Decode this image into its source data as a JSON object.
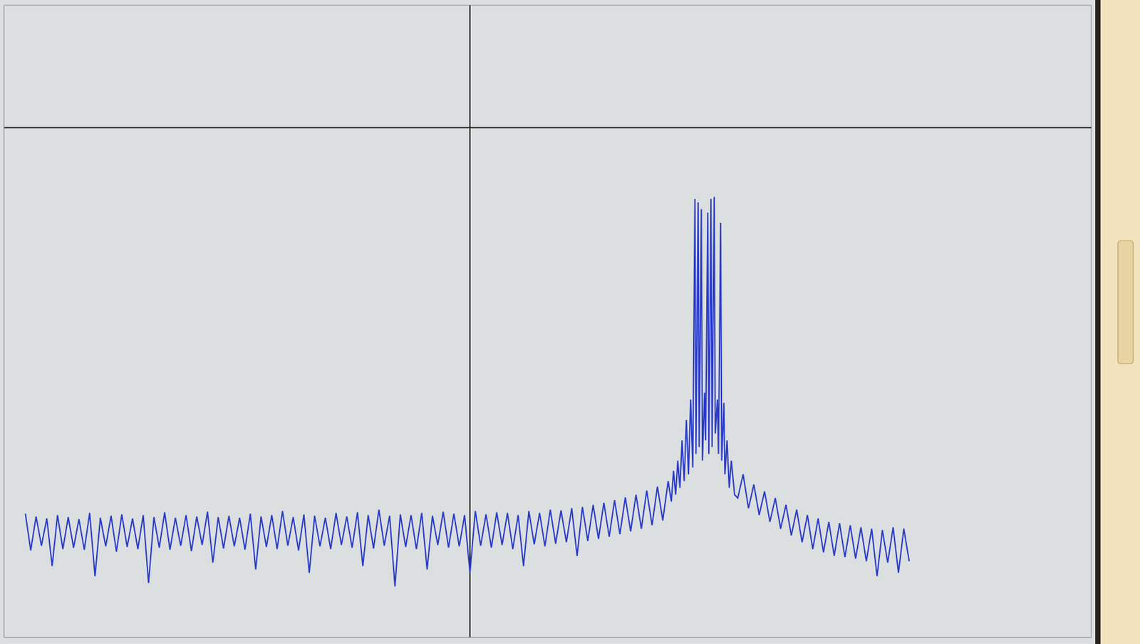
{
  "chart_data": {
    "type": "line",
    "color": "#2a3cc8",
    "grid": true,
    "tick_labels": false,
    "xlim": [
      -0.35,
      9.8
    ],
    "ylim": [
      -0.5,
      8.8
    ],
    "xticks": [
      0,
      1,
      2,
      3,
      4,
      5,
      6,
      7,
      8,
      9
    ],
    "yticks": [
      0,
      1,
      2,
      3,
      4,
      5,
      6,
      7,
      8
    ],
    "reference_lines": {
      "x": 4,
      "y": 7
    },
    "x": [
      -0.15,
      -0.1,
      -0.05,
      0,
      0.05,
      0.1,
      0.15,
      0.2,
      0.25,
      0.3,
      0.35,
      0.4,
      0.45,
      0.5,
      0.55,
      0.6,
      0.65,
      0.7,
      0.75,
      0.8,
      0.85,
      0.9,
      0.95,
      1,
      1.05,
      1.1,
      1.15,
      1.2,
      1.25,
      1.3,
      1.35,
      1.4,
      1.45,
      1.5,
      1.55,
      1.6,
      1.65,
      1.7,
      1.75,
      1.8,
      1.85,
      1.9,
      1.95,
      2,
      2.05,
      2.1,
      2.15,
      2.2,
      2.25,
      2.3,
      2.35,
      2.4,
      2.45,
      2.5,
      2.55,
      2.6,
      2.65,
      2.7,
      2.75,
      2.8,
      2.85,
      2.9,
      2.95,
      3,
      3.05,
      3.1,
      3.15,
      3.2,
      3.25,
      3.3,
      3.35,
      3.4,
      3.45,
      3.5,
      3.55,
      3.6,
      3.65,
      3.7,
      3.75,
      3.8,
      3.85,
      3.9,
      3.95,
      4,
      4.05,
      4.1,
      4.15,
      4.2,
      4.25,
      4.3,
      4.35,
      4.4,
      4.45,
      4.5,
      4.55,
      4.6,
      4.65,
      4.7,
      4.75,
      4.8,
      4.85,
      4.9,
      4.95,
      5,
      5.05,
      5.1,
      5.15,
      5.2,
      5.25,
      5.3,
      5.35,
      5.4,
      5.45,
      5.5,
      5.55,
      5.6,
      5.65,
      5.7,
      5.75,
      5.8,
      5.85,
      5.88,
      5.9,
      5.92,
      5.94,
      5.96,
      5.98,
      6,
      6.02,
      6.04,
      6.06,
      6.08,
      6.1,
      6.11,
      6.13,
      6.14,
      6.16,
      6.17,
      6.19,
      6.2,
      6.22,
      6.23,
      6.25,
      6.26,
      6.28,
      6.29,
      6.31,
      6.32,
      6.34,
      6.35,
      6.37,
      6.38,
      6.4,
      6.42,
      6.44,
      6.47,
      6.5,
      6.55,
      6.6,
      6.65,
      6.7,
      6.75,
      6.8,
      6.85,
      6.9,
      6.95,
      7,
      7.05,
      7.1,
      7.15,
      7.2,
      7.25,
      7.3,
      7.35,
      7.4,
      7.45,
      7.5,
      7.55,
      7.6,
      7.65,
      7.7,
      7.75,
      7.8,
      7.85,
      7.9,
      7.95,
      8,
      8.05,
      8.1
    ],
    "values": [
      1.32,
      0.78,
      1.28,
      0.85,
      1.25,
      0.55,
      1.3,
      0.8,
      1.27,
      0.82,
      1.24,
      0.79,
      1.33,
      0.4,
      1.26,
      0.84,
      1.29,
      0.76,
      1.31,
      0.83,
      1.25,
      0.8,
      1.3,
      0.3,
      1.27,
      0.82,
      1.34,
      0.79,
      1.26,
      0.85,
      1.3,
      0.77,
      1.28,
      0.86,
      1.35,
      0.6,
      1.27,
      0.81,
      1.29,
      0.84,
      1.26,
      0.79,
      1.32,
      0.5,
      1.28,
      0.83,
      1.3,
      0.8,
      1.36,
      0.85,
      1.27,
      0.78,
      1.31,
      0.45,
      1.29,
      0.84,
      1.26,
      0.8,
      1.33,
      0.86,
      1.28,
      0.82,
      1.34,
      0.55,
      1.3,
      0.81,
      1.38,
      0.85,
      1.29,
      0.25,
      1.31,
      0.83,
      1.3,
      0.8,
      1.33,
      0.5,
      1.29,
      0.86,
      1.35,
      0.82,
      1.32,
      0.84,
      1.3,
      0.45,
      1.36,
      0.85,
      1.31,
      0.82,
      1.34,
      0.86,
      1.33,
      0.8,
      1.3,
      0.55,
      1.36,
      0.87,
      1.33,
      0.84,
      1.38,
      0.88,
      1.37,
      0.9,
      1.4,
      0.7,
      1.42,
      0.92,
      1.45,
      0.95,
      1.48,
      0.98,
      1.52,
      1.02,
      1.56,
      1.06,
      1.6,
      1.1,
      1.66,
      1.15,
      1.72,
      1.22,
      1.8,
      1.5,
      1.95,
      1.6,
      2.1,
      1.7,
      2.4,
      1.8,
      2.7,
      1.9,
      3.0,
      2.0,
      5.95,
      2.2,
      5.9,
      2.3,
      5.8,
      2.1,
      3.1,
      2.4,
      5.75,
      2.2,
      5.95,
      2.3,
      5.98,
      2.5,
      3.0,
      2.2,
      5.6,
      2.1,
      2.95,
      1.9,
      2.4,
      1.7,
      2.1,
      1.6,
      1.55,
      1.9,
      1.4,
      1.75,
      1.3,
      1.65,
      1.2,
      1.55,
      1.1,
      1.45,
      1.0,
      1.38,
      0.9,
      1.3,
      0.8,
      1.25,
      0.75,
      1.2,
      0.7,
      1.18,
      0.68,
      1.15,
      0.66,
      1.12,
      0.62,
      1.1,
      0.4,
      1.08,
      0.6,
      1.12,
      0.45,
      1.1,
      0.62
    ]
  }
}
